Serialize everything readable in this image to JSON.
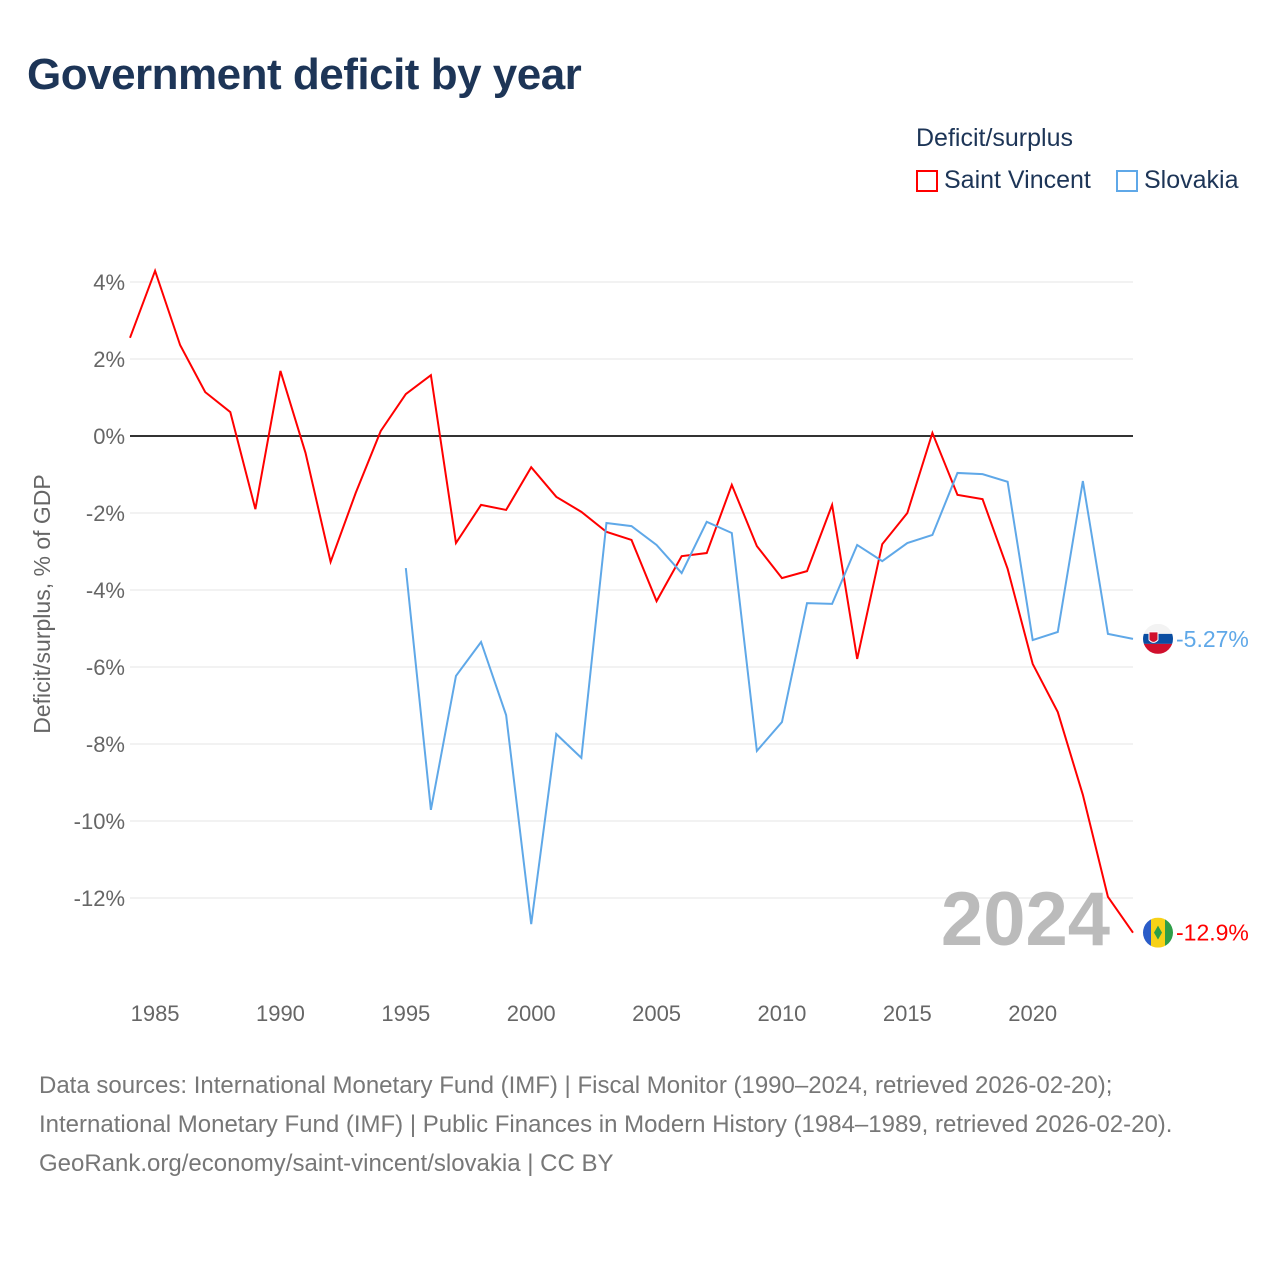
{
  "title": "Government deficit by year",
  "chart_data": {
    "type": "line",
    "title": "Government deficit by year",
    "ylabel": "Deficit/surplus, % of GDP",
    "xlabel": "",
    "legend_title": "Deficit/surplus",
    "legend_position": "top-right",
    "xlim": [
      1984,
      2024
    ],
    "ylim": [
      -13.5,
      4.5
    ],
    "x_ticks": [
      "1985",
      "1990",
      "1995",
      "2000",
      "2005",
      "2010",
      "2015",
      "2020"
    ],
    "y_ticks": [
      "4%",
      "2%",
      "0%",
      "-2%",
      "-4%",
      "-6%",
      "-8%",
      "-10%",
      "-12%"
    ],
    "y_tick_values": [
      4,
      2,
      0,
      -2,
      -4,
      -6,
      -8,
      -10,
      -12
    ],
    "year_watermark": "2024",
    "series": [
      {
        "name": "Saint Vincent",
        "color": "#ff0000",
        "end_label": "-12.9%",
        "start_year": 1984,
        "values": [
          2.55,
          4.29,
          2.36,
          1.14,
          0.62,
          -1.9,
          1.69,
          -0.44,
          -3.27,
          -1.48,
          0.13,
          1.09,
          1.58,
          -2.78,
          -1.79,
          -1.92,
          -0.81,
          -1.58,
          -1.97,
          -2.49,
          -2.7,
          -4.29,
          -3.12,
          -3.04,
          -1.27,
          -2.86,
          -3.69,
          -3.51,
          -1.79,
          -5.79,
          -2.81,
          -2.0,
          0.08,
          -1.53,
          -1.64,
          -3.45,
          -5.92,
          -7.17,
          -9.32,
          -11.97,
          -12.9
        ]
      },
      {
        "name": "Slovakia",
        "color": "#5fa8e8",
        "end_label": "-5.27%",
        "start_year": 1995,
        "values": [
          -3.43,
          -9.71,
          -6.23,
          -5.35,
          -7.25,
          -12.68,
          -7.74,
          -8.36,
          -2.26,
          -2.34,
          -2.83,
          -3.56,
          -2.23,
          -2.52,
          -8.18,
          -7.43,
          -4.34,
          -4.36,
          -2.83,
          -3.25,
          -2.78,
          -2.57,
          -0.96,
          -0.99,
          -1.19,
          -5.3,
          -5.09,
          -1.17,
          -5.14,
          -5.27
        ]
      }
    ]
  },
  "footer": {
    "sources": "Data sources: International Monetary Fund (IMF) | Fiscal Monitor (1990–2024, retrieved 2026-02-20); International Monetary Fund (IMF) | Public Finances in Modern History (1984–1989, retrieved 2026-02-20).",
    "link": "GeoRank.org/economy/saint-vincent/slovakia | CC BY"
  }
}
